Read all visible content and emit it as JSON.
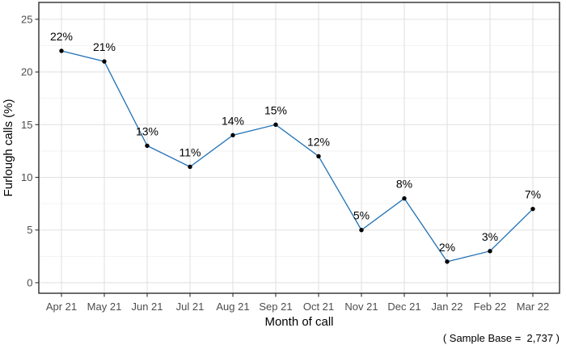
{
  "chart_data": {
    "type": "line",
    "title": "",
    "categories": [
      "Apr 21",
      "May 21",
      "Jun 21",
      "Jul 21",
      "Aug 21",
      "Sep 21",
      "Oct 21",
      "Nov 21",
      "Dec 21",
      "Jan 22",
      "Feb 22",
      "Mar 22"
    ],
    "values": [
      22,
      21,
      13,
      11,
      14,
      15,
      12,
      5,
      8,
      2,
      3,
      7
    ],
    "point_labels": [
      "22%",
      "21%",
      "13%",
      "11%",
      "14%",
      "15%",
      "12%",
      "5%",
      "8%",
      "2%",
      "3%",
      "7%"
    ],
    "xlabel": "Month of call",
    "ylabel": "Furlough calls (%)",
    "yticks": [
      0,
      5,
      10,
      15,
      20,
      25
    ],
    "ylim": [
      -1,
      26.6
    ],
    "grid": "horizontal major+minor, vertical major at each month",
    "legend": "none",
    "footnote": "( Sample Base =  2,737 )",
    "colors": {
      "line": "#2171b5",
      "point": "#000000",
      "grid_major": "#e2e2e2",
      "grid_minor": "#efefef",
      "panel_border": "#2d2d2d",
      "tick_mark": "#333333",
      "tick_label": "#4d4d4d",
      "text": "#000000",
      "background": "#ffffff"
    }
  }
}
